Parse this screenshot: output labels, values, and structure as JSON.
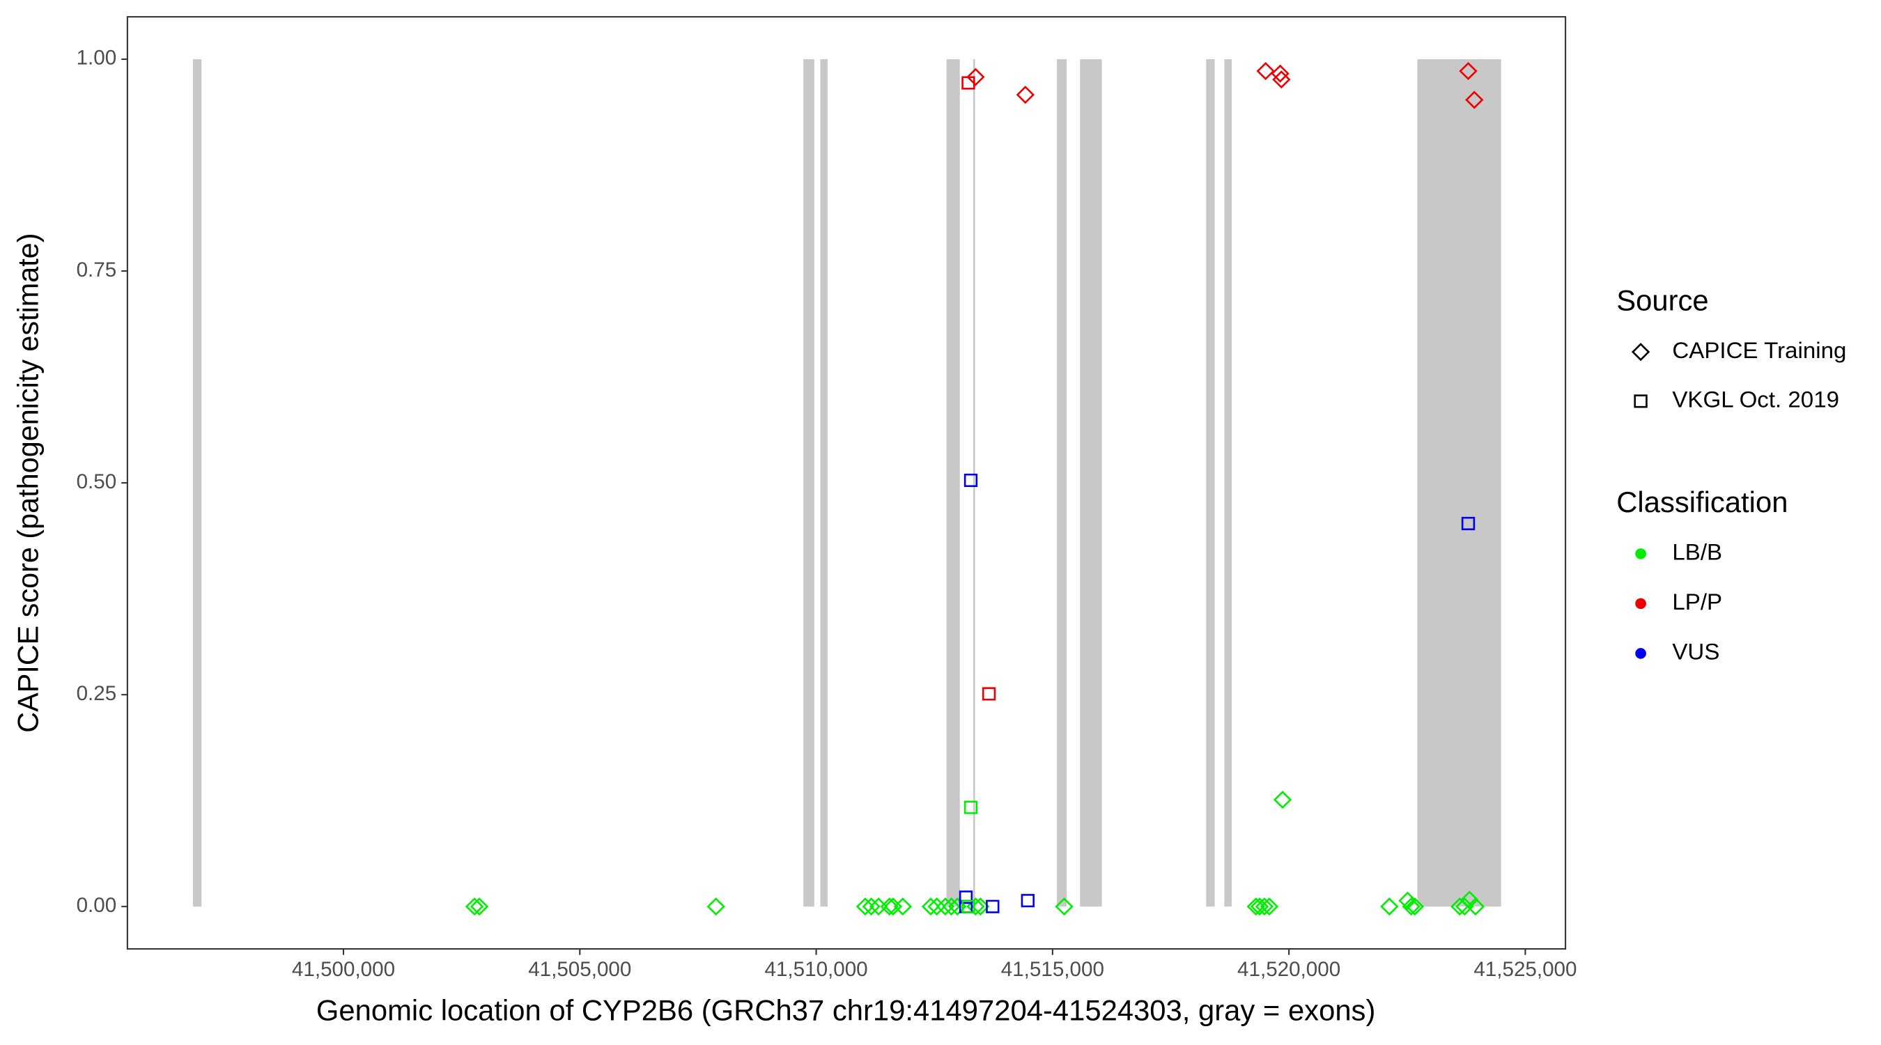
{
  "chart_data": {
    "type": "scatter",
    "x_label": "Genomic location of CYP2B6 (GRCh37 chr19:41497204-41524303, gray = exons)",
    "y_label": "CAPICE score (pathogenicity estimate)",
    "xlim": [
      41495430,
      41525850
    ],
    "ylim": [
      -0.05,
      1.05
    ],
    "xticks": [
      {
        "value": 41500000,
        "label": "41,500,000"
      },
      {
        "value": 41505000,
        "label": "41,505,000"
      },
      {
        "value": 41510000,
        "label": "41,510,000"
      },
      {
        "value": 41515000,
        "label": "41,515,000"
      },
      {
        "value": 41520000,
        "label": "41,520,000"
      },
      {
        "value": 41525000,
        "label": "41,525,000"
      }
    ],
    "yticks": [
      {
        "value": 0,
        "label": "0.00"
      },
      {
        "value": 0.25,
        "label": "0.25"
      },
      {
        "value": 0.5,
        "label": "0.50"
      },
      {
        "value": 0.75,
        "label": "0.75"
      },
      {
        "value": 1,
        "label": "1.00"
      }
    ],
    "exon_color": "#c8c8c8",
    "exons": [
      [
        41496817,
        41496997
      ],
      [
        41509728,
        41509959
      ],
      [
        41510087,
        41510241
      ],
      [
        41512757,
        41513039
      ],
      [
        41513321,
        41513360
      ],
      [
        41515092,
        41515298
      ],
      [
        41515580,
        41516042
      ],
      [
        41518249,
        41518429
      ],
      [
        41518634,
        41518789
      ],
      [
        41522716,
        41524487
      ]
    ],
    "source_legend": {
      "title": "Source",
      "entries": [
        {
          "name": "CAPICE Training",
          "shape": "diamond"
        },
        {
          "name": "VKGL Oct. 2019",
          "shape": "square"
        }
      ]
    },
    "classification_legend": {
      "title": "Classification",
      "entries": [
        {
          "name": "LB/B",
          "color": "#00ee00"
        },
        {
          "name": "LP/P",
          "color": "#ee0000"
        },
        {
          "name": "VUS",
          "color": "#0000ee"
        }
      ]
    },
    "series": [
      {
        "source": "CAPICE Training",
        "classification": "LB/B",
        "x": [
          41502772,
          41502875,
          41507880,
          41511037,
          41511165,
          41511319,
          41511550,
          41511627,
          41511832,
          41512423,
          41512551,
          41512731,
          41512859,
          41512987,
          41513372,
          41513475,
          41515246,
          41519302,
          41519379,
          41519481,
          41519584,
          41519866,
          41522125,
          41522510,
          41522587,
          41522664,
          41523613,
          41523716,
          41523819,
          41523947
        ],
        "values": [
          0,
          0,
          0,
          0,
          0,
          0,
          0,
          0,
          0,
          0,
          0,
          0,
          0,
          0,
          0,
          0,
          0,
          0,
          0,
          0,
          0,
          0.126,
          0,
          0.007,
          0,
          0,
          0,
          0,
          0.008,
          0
        ]
      },
      {
        "source": "CAPICE Training",
        "classification": "LP/P",
        "x": [
          41513372,
          41514425,
          41519507,
          41519815,
          41519841,
          41523793,
          41523922
        ],
        "values": [
          0.979,
          0.958,
          0.986,
          0.983,
          0.976,
          0.986,
          0.952
        ]
      },
      {
        "source": "VKGL Oct. 2019",
        "classification": "LP/P",
        "x": [
          41513218,
          41513655
        ],
        "values": [
          0.972,
          0.251
        ]
      },
      {
        "source": "VKGL Oct. 2019",
        "classification": "VUS",
        "x": [
          41513270,
          41523793,
          41513167,
          41513167,
          41513732,
          41514476
        ],
        "values": [
          0.503,
          0.452,
          0.011,
          0,
          0,
          0.007
        ]
      },
      {
        "source": "VKGL Oct. 2019",
        "classification": "LB/B",
        "x": [
          41513270,
          41513218
        ],
        "values": [
          0.117,
          0
        ]
      }
    ]
  }
}
